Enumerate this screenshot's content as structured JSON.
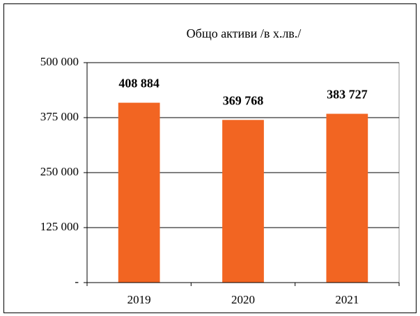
{
  "chart_data": {
    "type": "bar",
    "title": "Общо активи /в х.лв./",
    "categories": [
      "2019",
      "2020",
      "2021"
    ],
    "values": [
      408884,
      369768,
      383727
    ],
    "value_labels": [
      "408 884",
      "369 768",
      "383 727"
    ],
    "color": "#f26522",
    "ylim": [
      0,
      500000
    ],
    "yticks": [
      {
        "value": 0,
        "label": "-"
      },
      {
        "value": 125000,
        "label": "125 000"
      },
      {
        "value": 250000,
        "label": "250 000"
      },
      {
        "value": 375000,
        "label": "375 000"
      },
      {
        "value": 500000,
        "label": "500 000"
      }
    ],
    "grid": true
  }
}
